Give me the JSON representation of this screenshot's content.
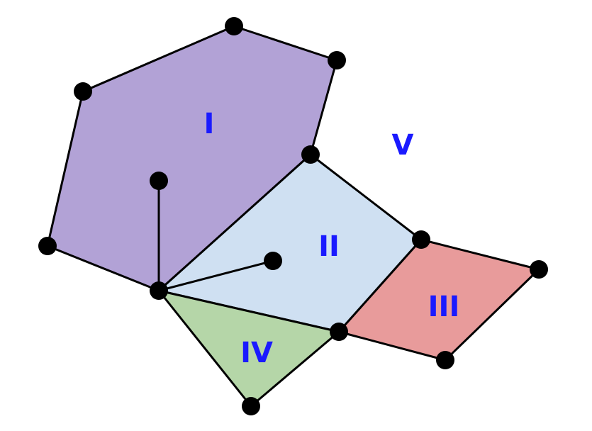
{
  "faces": [
    {
      "id": "I",
      "label": "I",
      "fill": "#b2a2d6"
    },
    {
      "id": "II",
      "label": "II",
      "fill": "#cfe0f2"
    },
    {
      "id": "III",
      "label": "III",
      "fill": "#e89b9b"
    },
    {
      "id": "IV",
      "label": "IV",
      "fill": "#b5d6a8"
    },
    {
      "id": "V",
      "label": "V",
      "fill": "none"
    }
  ],
  "colors": {
    "edge": "#000000",
    "vertex": "#000000",
    "label": "#1a1aff"
  }
}
